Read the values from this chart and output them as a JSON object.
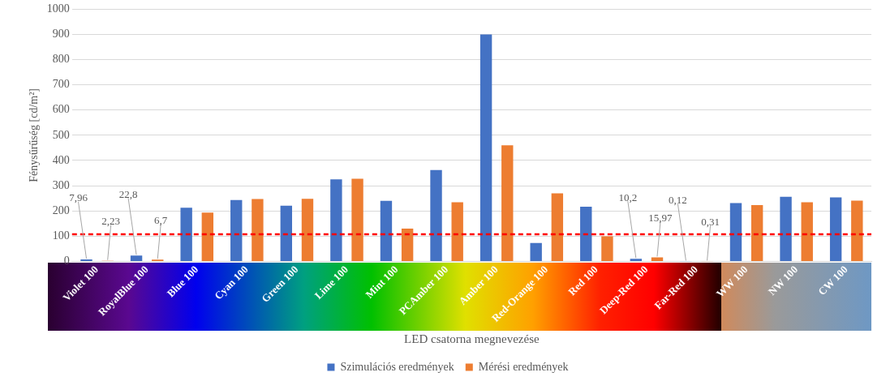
{
  "chart_data": {
    "type": "bar",
    "xlabel": "LED csatorna megnevezése",
    "ylabel": "Fénysűrűség [cd/m²]",
    "categories": [
      "Violet 100",
      "RoyalBlue 100",
      "Blue 100",
      "Cyan 100",
      "Green 100",
      "Lime 100",
      "Mint 100",
      "PCAmber 100",
      "Amber 100",
      "Red-Orange 100",
      "Red 100",
      "Deep-Red 100",
      "Far-Red 100",
      "WW 100",
      "NW 100",
      "CW 100"
    ],
    "series": [
      {
        "name": "Szimulációs eredmények",
        "color": "#4472c4",
        "values": [
          7.96,
          22.8,
          213,
          243,
          221,
          325,
          240,
          362,
          900,
          73,
          217,
          10.2,
          0.12,
          231,
          256,
          254
        ],
        "value_labels": [
          "7,96",
          "22,8",
          null,
          null,
          null,
          null,
          null,
          null,
          null,
          null,
          null,
          "10,2",
          "0,12",
          null,
          null,
          null
        ]
      },
      {
        "name": "Mérési eredmények",
        "color": "#ed7d31",
        "values": [
          2.23,
          6.7,
          193,
          247,
          248,
          328,
          130,
          234,
          460,
          270,
          99,
          15.97,
          0.31,
          223,
          234,
          241
        ],
        "value_labels": [
          "2,23",
          "6,7",
          null,
          null,
          null,
          null,
          null,
          null,
          null,
          null,
          null,
          "15,97",
          "0,31",
          null,
          null,
          null
        ]
      }
    ],
    "ylim": [
      0,
      1000
    ],
    "yticks": [
      0,
      100,
      200,
      300,
      400,
      500,
      600,
      700,
      800,
      900,
      1000
    ],
    "grid": "y",
    "legend": "bottom",
    "ref_lines": [
      {
        "axis": "y",
        "value": 107,
        "color": "#ff0000",
        "line_style": "dashed"
      }
    ]
  }
}
